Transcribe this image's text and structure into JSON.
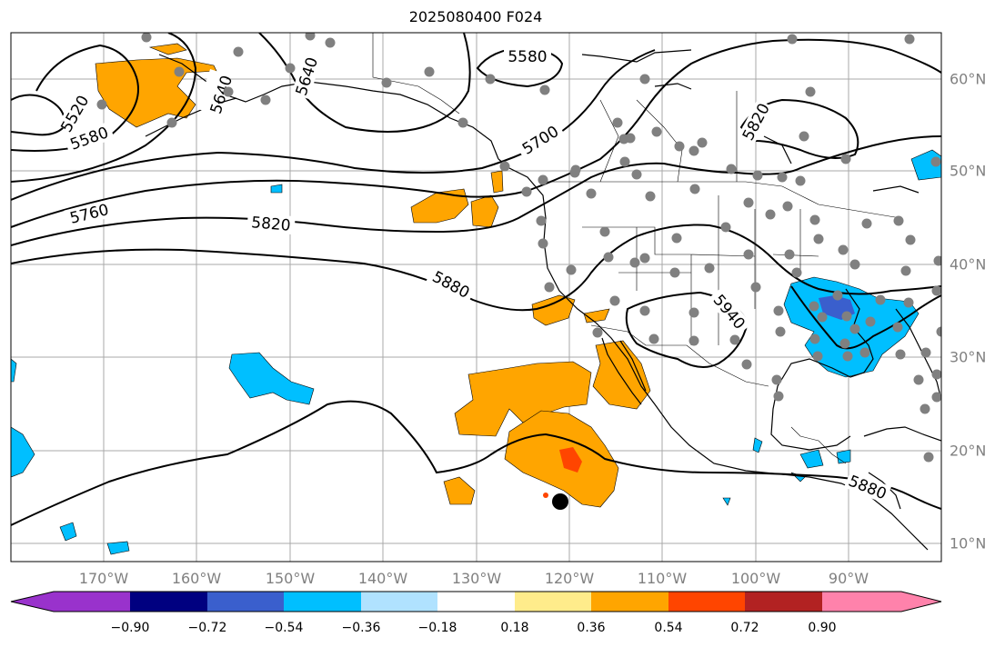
{
  "title": "2025080400 F024",
  "lon_labels": [
    "170°W",
    "160°W",
    "150°W",
    "140°W",
    "130°W",
    "120°W",
    "110°W",
    "100°W",
    "90°W"
  ],
  "lat_labels": [
    "60°N",
    "50°N",
    "40°N",
    "30°N",
    "20°N",
    "10°N"
  ],
  "colorbar": {
    "labels": [
      "−0.90",
      "−0.72",
      "−0.54",
      "−0.36",
      "−0.18",
      "0.18",
      "0.36",
      "0.54",
      "0.72",
      "0.90"
    ],
    "colors": [
      "#9932cc",
      "#000080",
      "#3a5fcd",
      "#00bfff",
      "#b0e2ff",
      "#ffffff",
      "#ffec8b",
      "#ffa500",
      "#ff4500",
      "#b22222",
      "#ff82ab"
    ]
  },
  "contour_labels": [
    "5520",
    "5580",
    "5640",
    "5640",
    "5580",
    "5700",
    "5820",
    "5760",
    "5820",
    "5880",
    "5940",
    "5880"
  ],
  "colors": {
    "positive_fill": "#ffa500",
    "strong_positive": "#ff4500",
    "negative_fill": "#00bfff",
    "strong_negative": "#3a5fcd",
    "station_dot": "#808080",
    "grid": "#a9a9a9"
  }
}
